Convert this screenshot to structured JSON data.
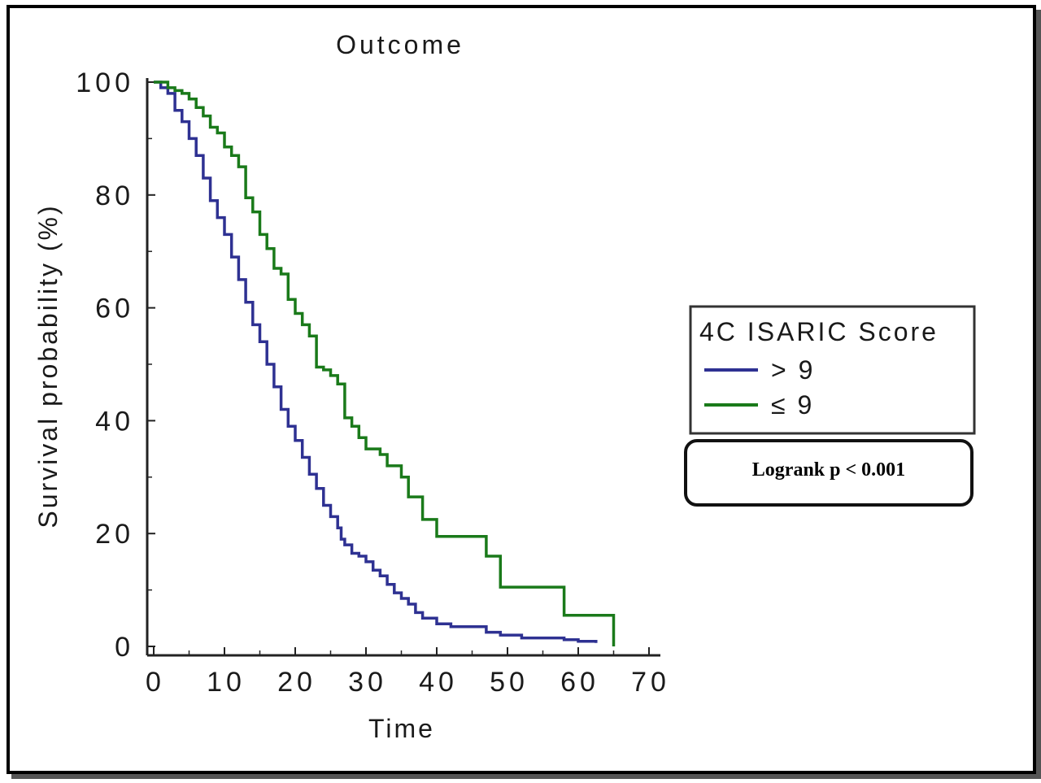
{
  "chart_data": {
    "type": "line",
    "subtype": "kaplan-meier-step",
    "title": "Outcome",
    "xlabel": "Time",
    "ylabel": "Survival probability (%)",
    "xlim": [
      0,
      70
    ],
    "ylim": [
      0,
      100
    ],
    "x_ticks": [
      "0",
      "10",
      "20",
      "30",
      "40",
      "50",
      "60",
      "70"
    ],
    "y_ticks": [
      "0",
      "20",
      "40",
      "60",
      "80",
      "100"
    ],
    "grid": false,
    "legend": {
      "title": "4C ISARIC Score",
      "placement": "right",
      "entries": [
        "> 9",
        "≤ 9"
      ]
    },
    "annotation": "Logrank p < 0.001",
    "series": [
      {
        "name": "> 9",
        "color": "#2e3192",
        "points": [
          [
            0,
            100
          ],
          [
            1,
            99
          ],
          [
            2,
            98
          ],
          [
            3,
            95
          ],
          [
            4,
            93
          ],
          [
            5,
            90
          ],
          [
            6,
            87
          ],
          [
            7,
            83
          ],
          [
            8,
            79
          ],
          [
            9,
            76
          ],
          [
            10,
            73
          ],
          [
            11,
            69
          ],
          [
            12,
            65
          ],
          [
            13,
            61
          ],
          [
            14,
            57
          ],
          [
            15,
            54
          ],
          [
            16,
            50
          ],
          [
            17,
            46
          ],
          [
            18,
            42
          ],
          [
            19,
            39
          ],
          [
            20,
            36.5
          ],
          [
            21,
            33.5
          ],
          [
            22,
            30.5
          ],
          [
            23,
            28
          ],
          [
            24,
            25
          ],
          [
            25,
            23
          ],
          [
            26,
            21
          ],
          [
            26.5,
            19
          ],
          [
            27,
            18
          ],
          [
            28,
            16.5
          ],
          [
            29,
            16
          ],
          [
            30,
            15
          ],
          [
            31,
            13.5
          ],
          [
            32,
            12.5
          ],
          [
            33,
            11
          ],
          [
            34,
            9.5
          ],
          [
            35,
            8.5
          ],
          [
            36,
            7.5
          ],
          [
            37,
            6
          ],
          [
            38,
            5
          ],
          [
            40,
            4
          ],
          [
            42,
            3.5
          ],
          [
            47,
            2.5
          ],
          [
            49,
            2
          ],
          [
            52,
            1.5
          ],
          [
            58,
            1.2
          ],
          [
            60,
            0.9
          ],
          [
            62.5,
            0.6
          ]
        ]
      },
      {
        "name": "≤ 9",
        "color": "#1a7a1a",
        "points": [
          [
            0,
            100
          ],
          [
            2,
            99
          ],
          [
            3,
            98.5
          ],
          [
            4,
            98
          ],
          [
            5,
            97
          ],
          [
            6,
            95.5
          ],
          [
            7,
            94
          ],
          [
            8,
            92
          ],
          [
            9,
            91
          ],
          [
            10,
            88.5
          ],
          [
            11,
            87
          ],
          [
            12,
            85
          ],
          [
            13,
            79.5
          ],
          [
            14,
            77
          ],
          [
            15,
            73
          ],
          [
            16,
            70.5
          ],
          [
            17,
            67
          ],
          [
            18,
            66
          ],
          [
            19,
            61.5
          ],
          [
            20,
            59
          ],
          [
            21,
            57
          ],
          [
            22,
            55
          ],
          [
            23,
            49.5
          ],
          [
            24,
            49
          ],
          [
            25,
            48
          ],
          [
            26,
            46.5
          ],
          [
            27,
            40.5
          ],
          [
            28,
            39
          ],
          [
            29,
            37
          ],
          [
            30,
            35
          ],
          [
            32,
            34
          ],
          [
            33,
            32
          ],
          [
            35,
            30
          ],
          [
            36,
            26.5
          ],
          [
            38,
            22.5
          ],
          [
            40,
            19.5
          ],
          [
            47,
            16
          ],
          [
            49,
            10.5
          ],
          [
            58,
            5.5
          ],
          [
            65,
            5.5
          ],
          [
            65,
            0
          ]
        ]
      }
    ]
  }
}
